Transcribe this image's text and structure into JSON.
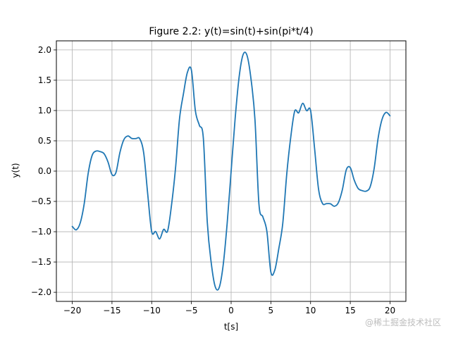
{
  "chart_data": {
    "type": "line",
    "title": "Figure 2.2: y(t)=sin(t)+sin(pi*t/4)",
    "xlabel": "t[s]",
    "ylabel": "y(t)",
    "xlim": [
      -22,
      22
    ],
    "ylim": [
      -2.15,
      2.15
    ],
    "xticks": [
      -20,
      -15,
      -10,
      -5,
      0,
      5,
      10,
      15,
      20
    ],
    "xtick_labels": [
      "−20",
      "−15",
      "−10",
      "−5",
      "0",
      "5",
      "10",
      "15",
      "20"
    ],
    "yticks": [
      -2.0,
      -1.5,
      -1.0,
      -0.5,
      0.0,
      0.5,
      1.0,
      1.5,
      2.0
    ],
    "ytick_labels": [
      "−2.0",
      "−1.5",
      "−1.0",
      "−0.5",
      "0.0",
      "0.5",
      "1.0",
      "1.5",
      "2.0"
    ],
    "grid": true,
    "series": [
      {
        "color": "#1f77b4",
        "x": [
          -20,
          -19.5,
          -19,
          -18.5,
          -18,
          -17.5,
          -17,
          -16.5,
          -16,
          -15.5,
          -15,
          -14.5,
          -14,
          -13.5,
          -13,
          -12.5,
          -12,
          -11.5,
          -11,
          -10.5,
          -10,
          -9.5,
          -9,
          -8.5,
          -8,
          -7.5,
          -7,
          -6.5,
          -6,
          -5.5,
          -5,
          -4.5,
          -4,
          -3.5,
          -3,
          -2.5,
          -2,
          -1.5,
          -1,
          -0.5,
          0,
          0.5,
          1,
          1.5,
          2,
          2.5,
          3,
          3.5,
          4,
          4.5,
          5,
          5.5,
          6,
          6.5,
          7,
          7.5,
          8,
          8.5,
          9,
          9.5,
          10,
          10.5,
          11,
          11.5,
          12,
          12.5,
          13,
          13.5,
          14,
          14.5,
          15,
          15.5,
          16,
          16.5,
          17,
          17.5,
          18,
          18.5,
          19,
          19.5,
          20
        ],
        "y": [
          -0.913,
          -0.969,
          -0.856,
          -0.542,
          -0.041,
          0.259,
          0.331,
          0.322,
          0.288,
          0.151,
          -0.057,
          -0.023,
          0.307,
          0.52,
          0.58,
          0.539,
          0.537,
          0.534,
          0.293,
          -0.381,
          -1.0,
          -0.998,
          -1.119,
          -0.962,
          -0.989,
          -0.556,
          0.05,
          0.862,
          1.279,
          1.632,
          1.666,
          0.995,
          0.757,
          0.544,
          -0.848,
          -1.521,
          -1.909,
          -1.921,
          -1.548,
          -0.862,
          0.0,
          0.862,
          1.548,
          1.921,
          1.909,
          1.521,
          0.848,
          -0.544,
          -0.757,
          -0.995,
          -1.666,
          -1.632,
          -1.279,
          -0.862,
          -0.05,
          0.556,
          0.989,
          0.962,
          1.119,
          0.998,
          1.0,
          0.381,
          -0.293,
          -0.534,
          -0.537,
          -0.539,
          -0.58,
          -0.52,
          -0.307,
          0.023,
          0.057,
          -0.151,
          -0.288,
          -0.322,
          -0.331,
          -0.259,
          0.041,
          0.542,
          0.856,
          0.969,
          0.913
        ]
      }
    ]
  },
  "watermark": "@稀土掘金技术社区"
}
